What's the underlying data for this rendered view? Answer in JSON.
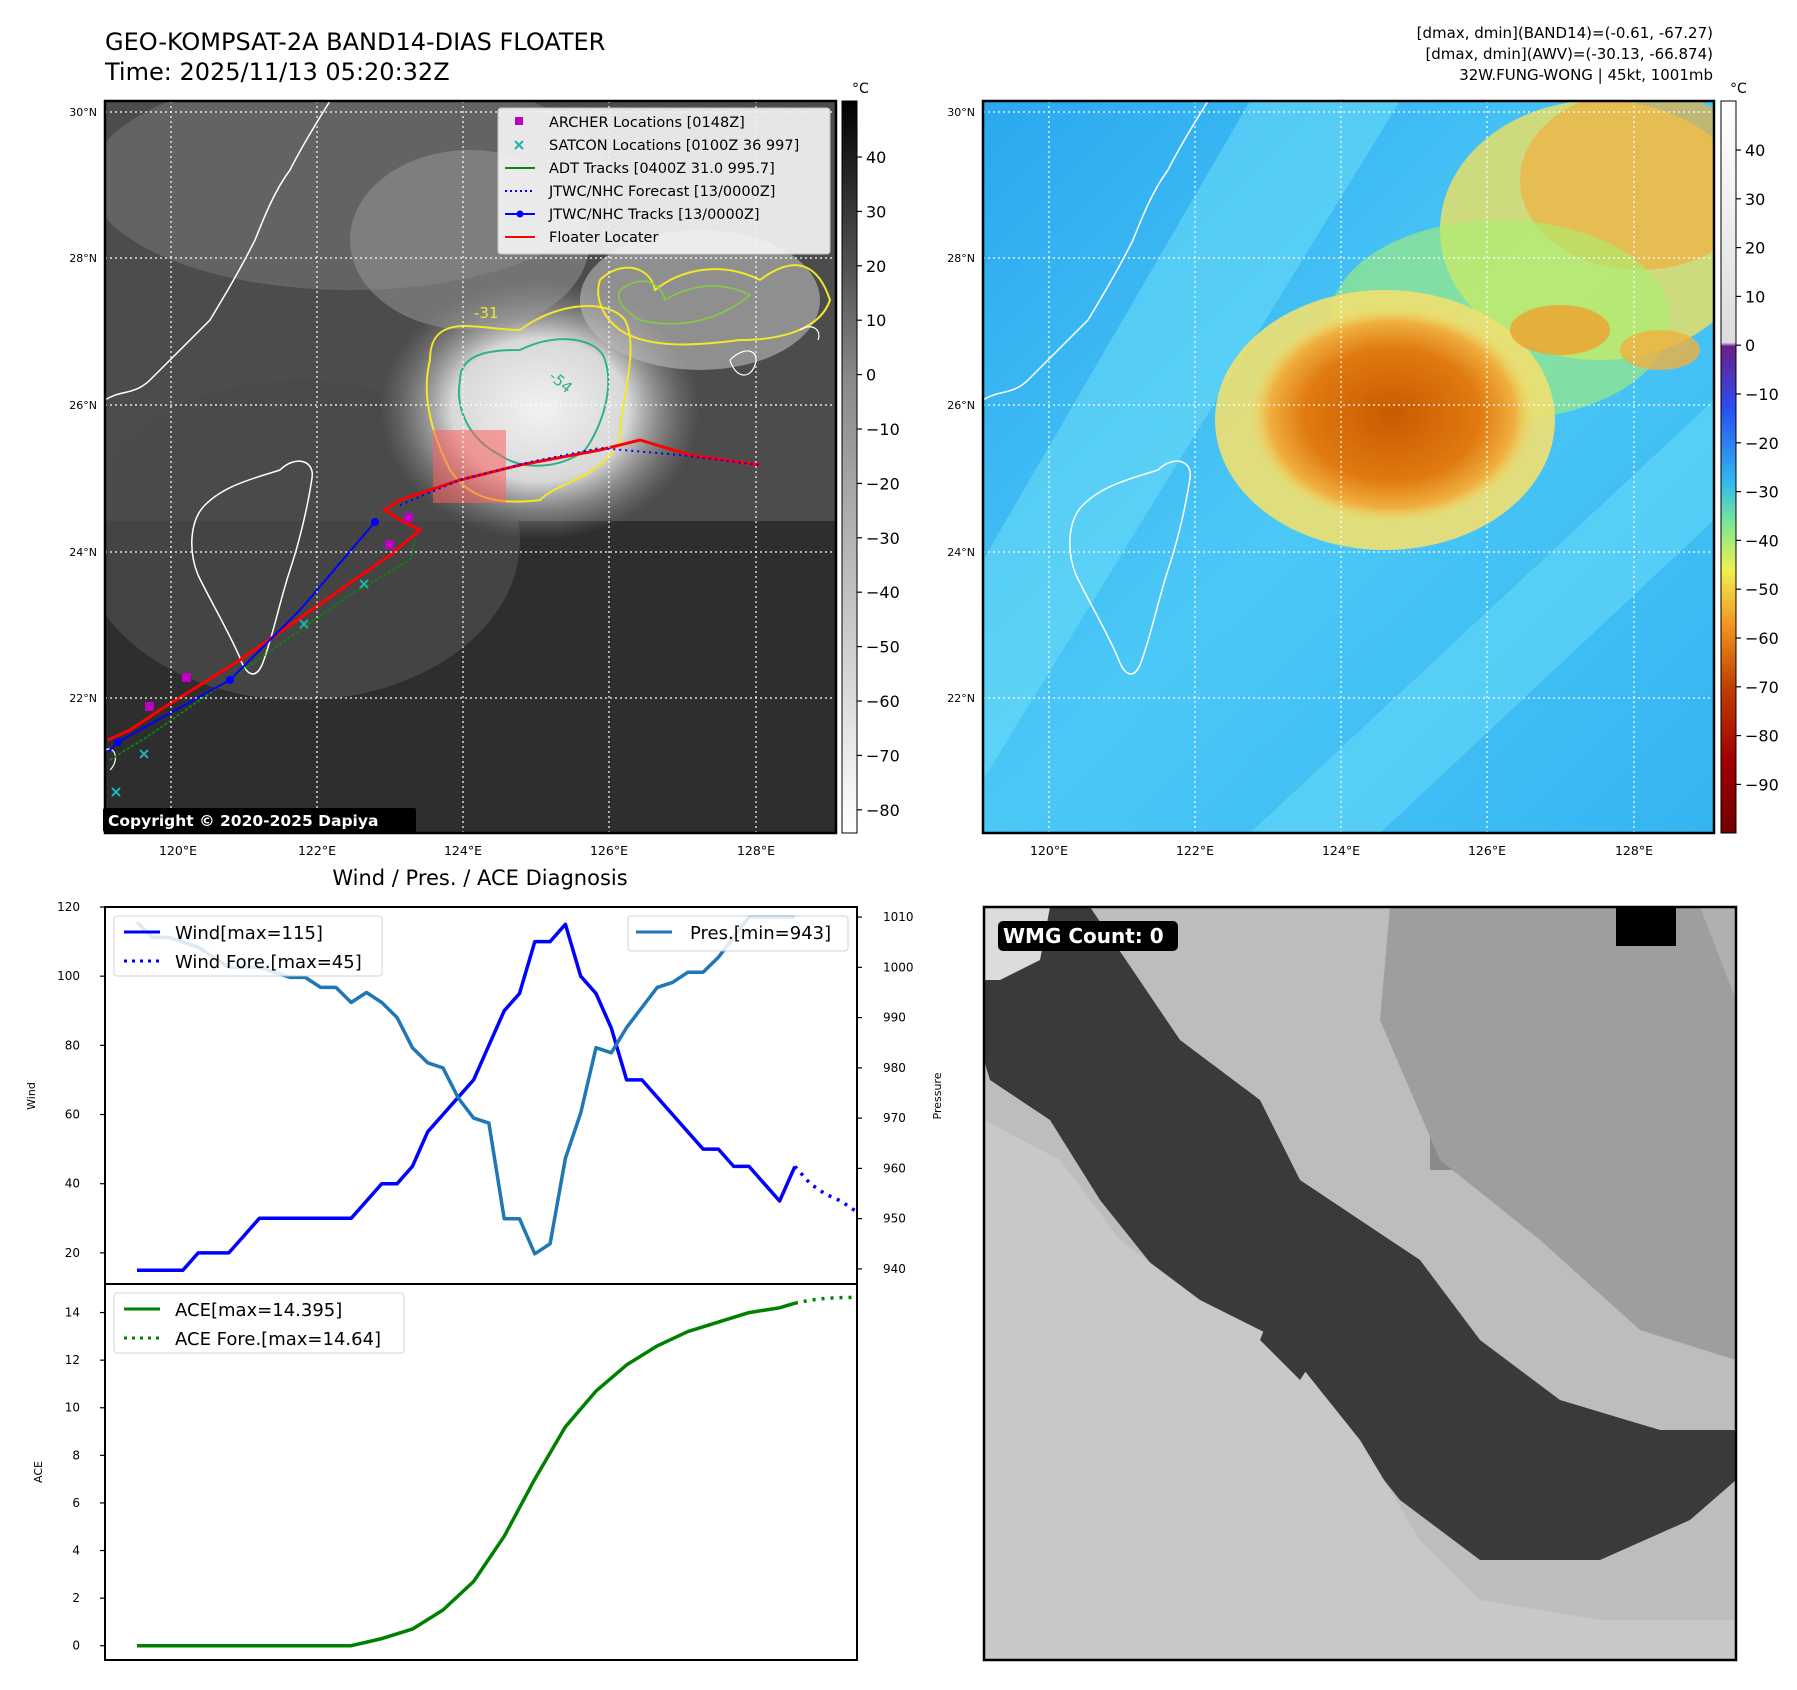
{
  "header": {
    "title_line1": "GEO-KOMPSAT-2A BAND14-DIAS FLOATER",
    "title_line2": "Time: 2025/11/13 05:20:32Z",
    "stats_line1": "[dmax, dmin](BAND14)=(-0.61, -67.27)",
    "stats_line2": "[dmax, dmin](AWV)=(-30.13, -66.874)",
    "stats_line3": "32W.FUNG-WONG | 45kt, 1001mb"
  },
  "map": {
    "lat_labels": [
      "30°N",
      "28°N",
      "26°N",
      "24°N",
      "22°N"
    ],
    "lon_labels": [
      "120°E",
      "122°E",
      "124°E",
      "126°E",
      "128°E"
    ],
    "copyright": "Copyright © 2020-2025 Dapiya",
    "contour_labels": [
      "-31",
      "-54"
    ],
    "legend": [
      {
        "label": "ARCHER Locations [0148Z]",
        "color": "#c000c0",
        "marker": "square-icon"
      },
      {
        "label": "SATCON Locations [0100Z 36 997]",
        "color": "#20b0b0",
        "marker": "x-icon"
      },
      {
        "label": "ADT Tracks [0400Z 31.0 995.7]",
        "color": "#108010",
        "marker": "solid-line-icon"
      },
      {
        "label": "JTWC/NHC Forecast [13/0000Z]",
        "color": "#0000ff",
        "marker": "dotted-line-icon"
      },
      {
        "label": "JTWC/NHC Tracks [13/0000Z]",
        "color": "#0000ff",
        "marker": "line-dot-icon"
      },
      {
        "label": "Floater Locater",
        "color": "#ff0000",
        "marker": "solid-line-icon"
      }
    ]
  },
  "colorbars": {
    "unit": "°C",
    "ir_ticks": [
      "40",
      "30",
      "20",
      "10",
      "0",
      "−10",
      "−20",
      "−30",
      "−40",
      "−50",
      "−60",
      "−70",
      "−80"
    ],
    "awv_ticks": [
      "40",
      "30",
      "20",
      "10",
      "0",
      "−10",
      "−20",
      "−30",
      "−40",
      "−50",
      "−60",
      "−70",
      "−80",
      "−90"
    ]
  },
  "diagnosis": {
    "title": "Wind / Pres. / ACE Diagnosis",
    "ylabel_wind": "Wind",
    "ylabel_pressure": "Pressure",
    "ylabel_ace": "ACE",
    "wmg_label": "WMG Count: 0"
  },
  "chart_data": [
    {
      "type": "line",
      "title": "Wind / Pres. / ACE Diagnosis",
      "ylabel": "Wind",
      "y2label": "Pressure",
      "ylim": [
        11,
        120
      ],
      "y2lim": [
        937,
        1012
      ],
      "yticks": [
        20,
        40,
        60,
        80,
        100,
        120
      ],
      "y2ticks": [
        940,
        950,
        960,
        970,
        980,
        990,
        1000,
        1010
      ],
      "series": [
        {
          "name": "Wind[max=115]",
          "axis": "left",
          "color": "#0000ff",
          "style": "solid",
          "x": [
            0,
            1,
            2,
            3,
            4,
            5,
            6,
            7,
            8,
            9,
            10,
            11,
            12,
            13,
            14,
            15,
            16,
            17,
            18,
            19,
            20,
            21,
            22,
            23,
            24,
            25,
            26,
            27,
            28,
            29,
            30,
            31,
            32,
            33,
            34,
            35,
            36,
            37,
            38,
            39,
            40,
            41,
            42,
            43
          ],
          "values": [
            15,
            15,
            15,
            15,
            20,
            20,
            20,
            25,
            30,
            30,
            30,
            30,
            30,
            30,
            30,
            35,
            40,
            40,
            45,
            55,
            60,
            65,
            70,
            80,
            90,
            95,
            110,
            110,
            115,
            100,
            95,
            85,
            70,
            70,
            65,
            60,
            55,
            50,
            50,
            45,
            45,
            40,
            35,
            45
          ]
        },
        {
          "name": "Wind Fore.[max=45]",
          "axis": "left",
          "color": "#0000ff",
          "style": "dotted",
          "x": [
            43,
            44,
            45,
            46,
            47
          ],
          "values": [
            45,
            40,
            37,
            35,
            32
          ]
        },
        {
          "name": "Pres.[min=943]",
          "axis": "right",
          "color": "#1f77b4",
          "style": "solid",
          "x": [
            0,
            1,
            2,
            3,
            4,
            5,
            6,
            7,
            8,
            9,
            10,
            11,
            12,
            13,
            14,
            15,
            16,
            17,
            18,
            19,
            20,
            21,
            22,
            23,
            24,
            25,
            26,
            27,
            28,
            29,
            30,
            31,
            32,
            33,
            34,
            35,
            36,
            37,
            38,
            39,
            40,
            41,
            42,
            43
          ],
          "values": [
            1009,
            1006,
            1006,
            1005,
            1004,
            1002,
            1000,
            1000,
            1000,
            999,
            998,
            998,
            996,
            996,
            993,
            995,
            993,
            990,
            984,
            981,
            980,
            974,
            970,
            969,
            950,
            950,
            943,
            945,
            962,
            971,
            984,
            983,
            988,
            992,
            996,
            997,
            999,
            999,
            1002,
            1006,
            1010,
            1010,
            1010,
            1010
          ]
        }
      ]
    },
    {
      "type": "line",
      "ylabel": "ACE",
      "ylim": [
        -0.6,
        15.2
      ],
      "yticks": [
        0,
        2,
        4,
        6,
        8,
        10,
        12,
        14
      ],
      "series": [
        {
          "name": "ACE[max=14.395]",
          "color": "#008000",
          "style": "solid",
          "x": [
            0,
            4,
            8,
            12,
            14,
            16,
            18,
            20,
            22,
            24,
            26,
            28,
            30,
            32,
            34,
            36,
            38,
            40,
            42,
            43
          ],
          "values": [
            0,
            0,
            0,
            0,
            0,
            0.3,
            0.7,
            1.5,
            2.7,
            4.6,
            7.0,
            9.2,
            10.7,
            11.8,
            12.6,
            13.2,
            13.6,
            14.0,
            14.2,
            14.395
          ]
        },
        {
          "name": "ACE Fore.[max=14.64]",
          "color": "#008000",
          "style": "dotted",
          "x": [
            43,
            44,
            45,
            46,
            47
          ],
          "values": [
            14.395,
            14.52,
            14.6,
            14.63,
            14.64
          ]
        }
      ]
    }
  ]
}
